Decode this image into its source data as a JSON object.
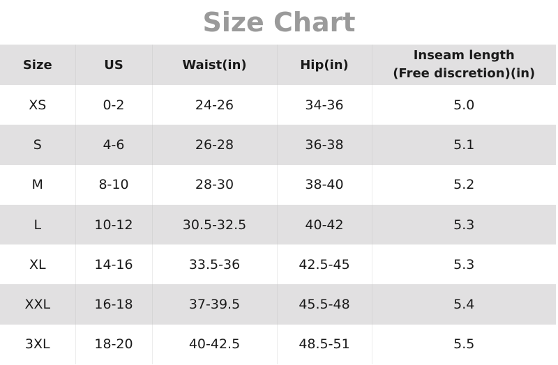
{
  "title": "Size Chart",
  "headers": [
    "Size",
    "US",
    "Waist(in)",
    "Hip(in)"
  ],
  "inseam_header": {
    "line1": "Inseam length",
    "line2": "(Free discretion)(in)"
  },
  "rows": [
    [
      "XS",
      "0-2",
      "24-26",
      "34-36",
      "5.0"
    ],
    [
      "S",
      "4-6",
      "26-28",
      "36-38",
      "5.1"
    ],
    [
      "M",
      "8-10",
      "28-30",
      "38-40",
      "5.2"
    ],
    [
      "L",
      "10-12",
      "30.5-32.5",
      "40-42",
      "5.3"
    ],
    [
      "XL",
      "14-16",
      "33.5-36",
      "42.5-45",
      "5.3"
    ],
    [
      "XXL",
      "16-18",
      "37-39.5",
      "45.5-48",
      "5.4"
    ],
    [
      "3XL",
      "18-20",
      "40-42.5",
      "48.5-51",
      "5.5"
    ]
  ],
  "colors": {
    "title": "#9a9a9a",
    "stripe": "#e1e0e1"
  }
}
